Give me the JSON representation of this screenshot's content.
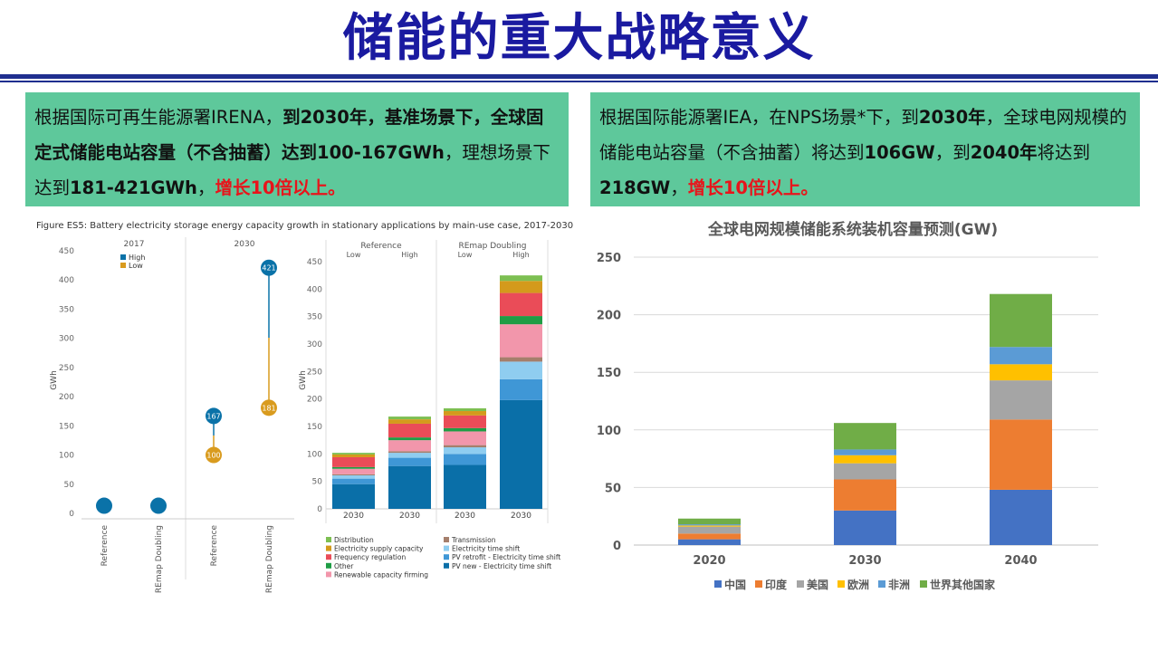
{
  "slide": {
    "title": "储能的重大战略意义"
  },
  "left_box": {
    "t1": "根据国际可再生能源署IRENA，",
    "b1": "到2030年，基准场景下，全球固定式储能电站容量（不含抽蓄）达到100-167GWh",
    "t2": "，理想场景下达到",
    "b2": "181-421GWh",
    "t3": "，",
    "r1": "增长10倍以上。"
  },
  "right_box": {
    "t1": "根据国际能源署IEA，在NPS场景*下，到",
    "b1": "2030年",
    "t2": "，全球电网规模的储能电站容量（不含抽蓄）将达到",
    "b2": "106GW",
    "t3": "，到",
    "b3": "2040年",
    "t4": "将达到",
    "b4": "218GW",
    "t5": "，",
    "r1": "增长10倍以上。"
  },
  "chart_data": [
    {
      "type": "scatter",
      "title": "Figure ES5: Battery electricity storage energy capacity growth in stationary applications by main-use case, 2017-2030",
      "ylabel": "GWh",
      "ylim": [
        0,
        450
      ],
      "yticks": [
        0,
        50,
        100,
        150,
        200,
        250,
        300,
        350,
        400,
        450
      ],
      "groups": [
        "2017",
        "2030"
      ],
      "categories": [
        "Reference",
        "REmap Doubling",
        "Reference",
        "REmap Doubling"
      ],
      "legend": {
        "position": "top-left",
        "entries": [
          "High",
          "Low"
        ]
      },
      "series": [
        {
          "name": "High",
          "color": "#0a72a8",
          "values": [
            null,
            null,
            167,
            421
          ]
        },
        {
          "name": "Low",
          "color": "#d99b1e",
          "values": [
            null,
            null,
            100,
            181
          ]
        }
      ],
      "base_points": [
        10,
        10,
        null,
        null
      ],
      "point_labels": {
        "High": [
          "",
          "",
          "167",
          "421"
        ],
        "Low": [
          "",
          "",
          "100",
          "181"
        ]
      }
    },
    {
      "type": "bar",
      "ylabel": "GWh",
      "ylim": [
        0,
        450
      ],
      "yticks": [
        0,
        50,
        100,
        150,
        200,
        250,
        300,
        350,
        400,
        450
      ],
      "groups": [
        {
          "name": "Reference",
          "sub": [
            "Low",
            "High"
          ]
        },
        {
          "name": "REmap Doubling",
          "sub": [
            "Low",
            "High"
          ]
        }
      ],
      "categories": [
        "2030",
        "2030",
        "2030",
        "2030"
      ],
      "series": [
        {
          "name": "PV new - Electricity time shift",
          "color": "#0a6fa8",
          "values": [
            45,
            78,
            80,
            198
          ]
        },
        {
          "name": "PV retrofit - Electricity time shift",
          "color": "#3f97d6",
          "values": [
            10,
            15,
            20,
            38
          ]
        },
        {
          "name": "Electricity time shift",
          "color": "#8fcdf0",
          "values": [
            6,
            9,
            12,
            32
          ]
        },
        {
          "name": "Transmission",
          "color": "#a57f6c",
          "values": [
            2,
            3,
            4,
            8
          ]
        },
        {
          "name": "Renewable capacity firming",
          "color": "#f296ab",
          "values": [
            10,
            20,
            25,
            60
          ]
        },
        {
          "name": "Other",
          "color": "#1f9d45",
          "values": [
            3,
            5,
            6,
            15
          ]
        },
        {
          "name": "Frequency regulation",
          "color": "#ea4c58",
          "values": [
            18,
            25,
            23,
            42
          ]
        },
        {
          "name": "Electricity supply capacity",
          "color": "#d49a1c",
          "values": [
            5,
            8,
            8,
            22
          ]
        },
        {
          "name": "Distribution",
          "color": "#7dbf52",
          "values": [
            3,
            5,
            5,
            10
          ]
        }
      ],
      "legend": {
        "position": "bottom"
      }
    },
    {
      "type": "bar",
      "title": "全球电网规模储能系统装机容量预测(GW)",
      "categories": [
        "2020",
        "2030",
        "2040"
      ],
      "ylim": [
        0,
        250
      ],
      "yticks": [
        0,
        50,
        100,
        150,
        200,
        250
      ],
      "series": [
        {
          "name": "中国",
          "color": "#4472c4",
          "values": [
            5,
            30,
            48
          ]
        },
        {
          "name": "印度",
          "color": "#ed7d31",
          "values": [
            5,
            27,
            61
          ]
        },
        {
          "name": "美国",
          "color": "#a5a5a5",
          "values": [
            6,
            14,
            34
          ]
        },
        {
          "name": "欧洲",
          "color": "#ffc000",
          "values": [
            1,
            7,
            14
          ]
        },
        {
          "name": "非洲",
          "color": "#5b9bd5",
          "values": [
            1,
            5,
            15
          ]
        },
        {
          "name": "世界其他国家",
          "color": "#70ad47",
          "values": [
            5,
            23,
            46
          ]
        }
      ],
      "legend": {
        "position": "bottom"
      }
    }
  ]
}
